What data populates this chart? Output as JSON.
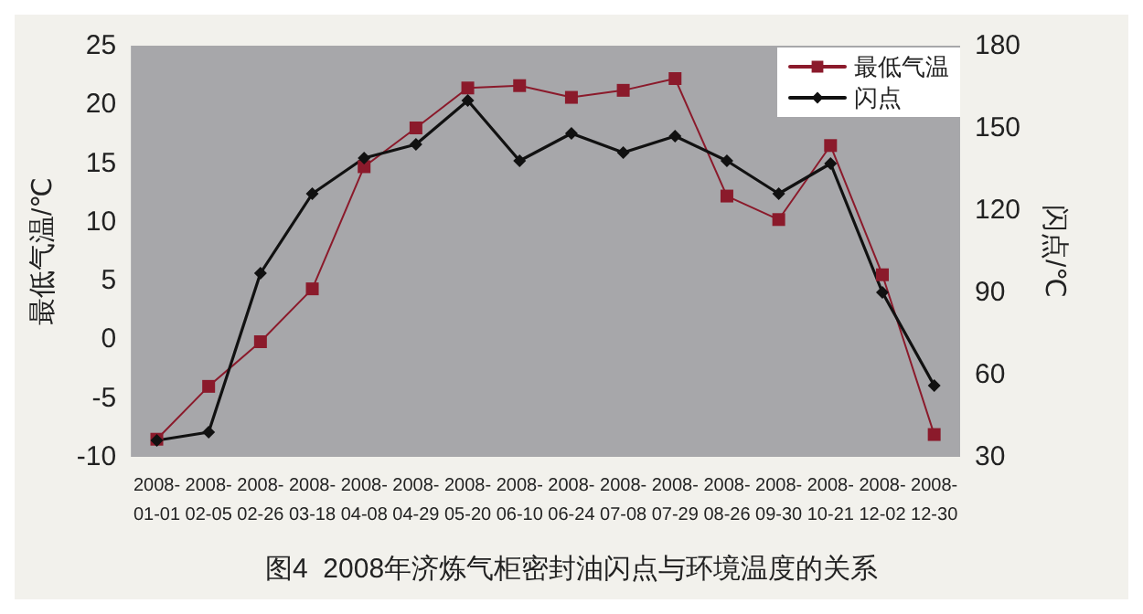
{
  "chart_data": {
    "type": "line",
    "title": "图4  2008年济炼气柜密封油闪点与环境温度的关系",
    "ylabel": "最低气温/℃",
    "y2label": "闪点/℃",
    "categories": [
      "2008-\n01-01",
      "2008-\n02-05",
      "2008-\n02-26",
      "2008-\n03-18",
      "2008-\n04-08",
      "2008-\n04-29",
      "2008-\n05-20",
      "2008-\n06-10",
      "2008-\n06-24",
      "2008-\n07-08",
      "2008-\n07-29",
      "2008-\n08-26",
      "2008-\n09-30",
      "2008-\n10-21",
      "2008-\n12-02",
      "2008-\n12-30"
    ],
    "series": [
      {
        "name": "最低气温",
        "color": "#8b1a2b",
        "marker": "square",
        "values": [
          -8.5,
          -4,
          -0.2,
          4.3,
          14.7,
          18,
          21.4,
          21.6,
          20.6,
          21.2,
          22.2,
          12.2,
          10.2,
          16.5,
          5.5,
          -8.1
        ]
      },
      {
        "name": "闪点",
        "color": "#111111",
        "marker": "diamond",
        "axis": "y2",
        "values": [
          36,
          39,
          97,
          126,
          139,
          144,
          160,
          138,
          148,
          141,
          147,
          138,
          126,
          137,
          90,
          56
        ]
      }
    ],
    "ylim": [
      -10,
      25
    ],
    "yticks": [
      -10,
      -5,
      0,
      5,
      10,
      15,
      20,
      25
    ],
    "y2lim": [
      30,
      180
    ],
    "y2ticks": [
      30,
      60,
      90,
      120,
      150,
      180
    ],
    "grid": false,
    "legend": "top right",
    "line_style": "solid"
  }
}
